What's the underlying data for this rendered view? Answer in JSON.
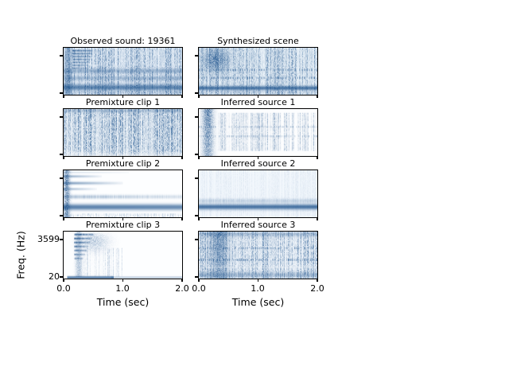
{
  "chart_data": {
    "type": "heatmap",
    "subtype": "spectrogram-grid",
    "grid": {
      "rows": 4,
      "cols": 2
    },
    "colormap": "Blues",
    "x_axis": {
      "label": "Time (sec)",
      "ticks": [
        "0.0",
        "1.0",
        "2.0"
      ],
      "range": [
        0.0,
        2.0
      ]
    },
    "y_axis": {
      "label": "Freq. (Hz)",
      "ticks": [
        "3599",
        "20"
      ],
      "range_hz": [
        20,
        3599
      ],
      "scale": "log-like, 3599 tick near top, 20 at bottom"
    },
    "panels": [
      {
        "id": "observed-sound",
        "row": 0,
        "col": 0,
        "title": "Observed sound: 19361",
        "description": "dense blue spectrogram; harmonic onset stack top-left; dark horizontal rows mid panel; strong dark low-frequency band near bottom; vertical noise striations",
        "art": [
          {
            "op": "fill",
            "c": "#edf4fb"
          },
          {
            "op": "vstripes",
            "aMin": 0.06,
            "aMax": 0.38,
            "pow": 1.2
          },
          {
            "op": "hband",
            "y": 0.44,
            "h": 0.1,
            "a": 0.3,
            "noise": true
          },
          {
            "op": "hband",
            "y": 0.6,
            "h": 0.09,
            "a": 0.28,
            "noise": true
          },
          {
            "op": "hband",
            "y": 0.78,
            "h": 0.12,
            "a": 0.72
          },
          {
            "op": "vband",
            "x": 0.01,
            "w": 0.05,
            "a": 0.45
          },
          {
            "op": "harmonics",
            "x": 0.075,
            "w": 0.17,
            "y0": 0.04,
            "dy": 0.062,
            "count": 7,
            "a": 0.78,
            "shrink": 0.05
          },
          {
            "op": "vstripes",
            "y0": 0.93,
            "y1": 1,
            "aMin": 0.0,
            "aMax": 0.2
          }
        ]
      },
      {
        "id": "synthesized-scene",
        "row": 0,
        "col": 1,
        "title": "Synthesized scene",
        "description": "similar to observed: striations, dark blob top-left, dotted mid rows, strong dark band near bottom",
        "art": [
          {
            "op": "fill",
            "c": "#eff6fb"
          },
          {
            "op": "vstripes",
            "aMin": 0.05,
            "aMax": 0.34,
            "pow": 1.2
          },
          {
            "op": "blob",
            "x": 0.04,
            "y": 0.0,
            "w": 0.2,
            "h": 0.5,
            "a": 0.5
          },
          {
            "op": "dashes",
            "y": 0.45,
            "h": 0.045,
            "a": 0.25,
            "step": 6,
            "len": 4
          },
          {
            "op": "dashes",
            "y": 0.62,
            "h": 0.045,
            "a": 0.25,
            "step": 6,
            "len": 4
          },
          {
            "op": "hband",
            "y": 0.81,
            "h": 0.09,
            "a": 0.78
          },
          {
            "op": "vstripes",
            "y0": 0.93,
            "y1": 1,
            "aMin": 0.0,
            "aMax": 0.18
          }
        ]
      },
      {
        "id": "premixture-clip-1",
        "row": 1,
        "col": 0,
        "title": "Premixture clip 1",
        "description": "uniform vertical noise striations over whole panel, slightly denser at top, fading at bottom edge",
        "art": [
          {
            "op": "fill",
            "c": "#f6fafd"
          },
          {
            "op": "vstripes",
            "aMin": 0.08,
            "aMax": 0.45,
            "pow": 1.1
          },
          {
            "op": "hband",
            "y": 0.0,
            "h": 0.07,
            "a": 0.22,
            "noise": true
          },
          {
            "op": "lighten",
            "y": 0.86,
            "h": 0.14,
            "a": 0.55
          }
        ]
      },
      {
        "id": "inferred-source-1",
        "row": 1,
        "col": 1,
        "title": "Inferred source 1",
        "description": "dark vertical blob at onset (left), sparse faint vertical striations with dotted mid-frequency rows, light background",
        "art": [
          {
            "op": "fill",
            "c": "#fcfdfe"
          },
          {
            "op": "vband",
            "x": 0.03,
            "w": 0.09,
            "a": 0.58,
            "topBias": 0.3
          },
          {
            "op": "vstripes",
            "x0": 0.16,
            "y0": 0.08,
            "y1": 0.88,
            "aMin": 0.0,
            "aMax": 0.3,
            "pow": 2.2
          },
          {
            "op": "dashes",
            "y": 0.36,
            "h": 0.04,
            "a": 0.18,
            "step": 5,
            "len": 3
          },
          {
            "op": "dashes",
            "y": 0.56,
            "h": 0.04,
            "a": 0.2,
            "step": 5,
            "len": 3
          },
          {
            "op": "lighten",
            "y": 0.86,
            "h": 0.14,
            "a": 0.5,
            "x0": 0.16
          }
        ]
      },
      {
        "id": "premixture-clip-2",
        "row": 2,
        "col": 0,
        "title": "Premixture clip 2",
        "description": "mostly white; decaying harmonic lines from left edge at top; medium band mid-low; strong dark horizontal band near bottom spanning full width",
        "art": [
          {
            "op": "fill",
            "c": "#fdfeff"
          },
          {
            "op": "vband",
            "x": 0.0,
            "w": 0.05,
            "a": 0.5
          },
          {
            "op": "hband",
            "y": 0.02,
            "h": 0.04,
            "a": 0.15,
            "x1": 0.55,
            "fadeR": 0.8
          },
          {
            "op": "hband",
            "y": 0.1,
            "h": 0.05,
            "a": 0.5,
            "x1": 0.32,
            "fadeR": 0.9
          },
          {
            "op": "hband",
            "y": 0.24,
            "h": 0.06,
            "a": 0.55,
            "x1": 0.5,
            "fadeR": 0.9
          },
          {
            "op": "hband",
            "y": 0.37,
            "h": 0.05,
            "a": 0.4,
            "x1": 0.28,
            "fadeR": 0.9
          },
          {
            "op": "hband",
            "y": 0.52,
            "h": 0.08,
            "a": 0.32,
            "fadeR": 0.55,
            "noise": true
          },
          {
            "op": "hband",
            "y": 0.72,
            "h": 0.12,
            "a": 0.85,
            "fadeR": 0.12
          },
          {
            "op": "vstripes",
            "y0": 0.92,
            "y1": 1,
            "aMin": 0.02,
            "aMax": 0.16
          }
        ]
      },
      {
        "id": "inferred-source-2",
        "row": 2,
        "col": 1,
        "title": "Inferred source 2",
        "description": "very light panel with a single strong dark horizontal band near the bottom and a soft halo above it",
        "art": [
          {
            "op": "fill",
            "c": "#f2f7fc"
          },
          {
            "op": "vstripes",
            "aMin": 0.0,
            "aMax": 0.05
          },
          {
            "op": "hband",
            "y": 0.6,
            "h": 0.09,
            "a": 0.18,
            "noise": true
          },
          {
            "op": "hband",
            "y": 0.72,
            "h": 0.11,
            "a": 0.82
          }
        ]
      },
      {
        "id": "premixture-clip-3",
        "row": 3,
        "col": 0,
        "title": "Premixture clip 3",
        "description": "white panel; strong harmonic burst stack at ~0.25-0.5 sec upper half; faint wisps after; thin dark line along the very bottom (20 Hz)",
        "art": [
          {
            "op": "fill",
            "c": "#fdfeff"
          },
          {
            "op": "harmonics",
            "x": 0.09,
            "w": 0.16,
            "y0": 0.04,
            "dy": 0.085,
            "count": 7,
            "a": 0.85,
            "shrink": 0.09
          },
          {
            "op": "vband",
            "x": 0.1,
            "w": 0.05,
            "a": 0.3,
            "y1": 0.96
          },
          {
            "op": "blob",
            "x": 0.15,
            "y": 0.03,
            "w": 0.22,
            "h": 0.35,
            "a": 0.22
          },
          {
            "op": "vstripes",
            "x0": 0.14,
            "x1": 0.5,
            "y0": 0.35,
            "y1": 0.96,
            "aMin": 0.0,
            "aMax": 0.15,
            "pow": 2.5
          },
          {
            "op": "hband",
            "y": 0.945,
            "h": 0.05,
            "a": 0.75,
            "x0": 0.03,
            "x1": 0.42
          },
          {
            "op": "hband",
            "y": 0.95,
            "h": 0.04,
            "a": 0.3,
            "x0": 0.4
          }
        ]
      },
      {
        "id": "inferred-source-3",
        "row": 3,
        "col": 1,
        "title": "Inferred source 3",
        "description": "textured striations everywhere; dark vertical band at onset; dotted horizontal rows mid panel; denser top edge and textured bottom band",
        "art": [
          {
            "op": "fill",
            "c": "#f5f9fd"
          },
          {
            "op": "vstripes",
            "aMin": 0.05,
            "aMax": 0.35,
            "pow": 1.3
          },
          {
            "op": "vband",
            "x": 0.1,
            "w": 0.14,
            "a": 0.5,
            "topBias": 0.3
          },
          {
            "op": "hband",
            "y": 0.0,
            "h": 0.1,
            "a": 0.25,
            "noise": true
          },
          {
            "op": "dashes",
            "y": 0.33,
            "h": 0.045,
            "a": 0.3,
            "step": 5,
            "len": 3
          },
          {
            "op": "dashes",
            "y": 0.58,
            "h": 0.045,
            "a": 0.32,
            "step": 5,
            "len": 3
          },
          {
            "op": "lighten",
            "y": 0.68,
            "h": 0.1,
            "a": 0.25
          },
          {
            "op": "hband",
            "y": 0.86,
            "h": 0.12,
            "a": 0.28,
            "noise": true
          }
        ]
      }
    ]
  },
  "colors": {
    "spectrogram_ink": "#0d4684",
    "axis": "#000000",
    "background": "#ffffff"
  }
}
